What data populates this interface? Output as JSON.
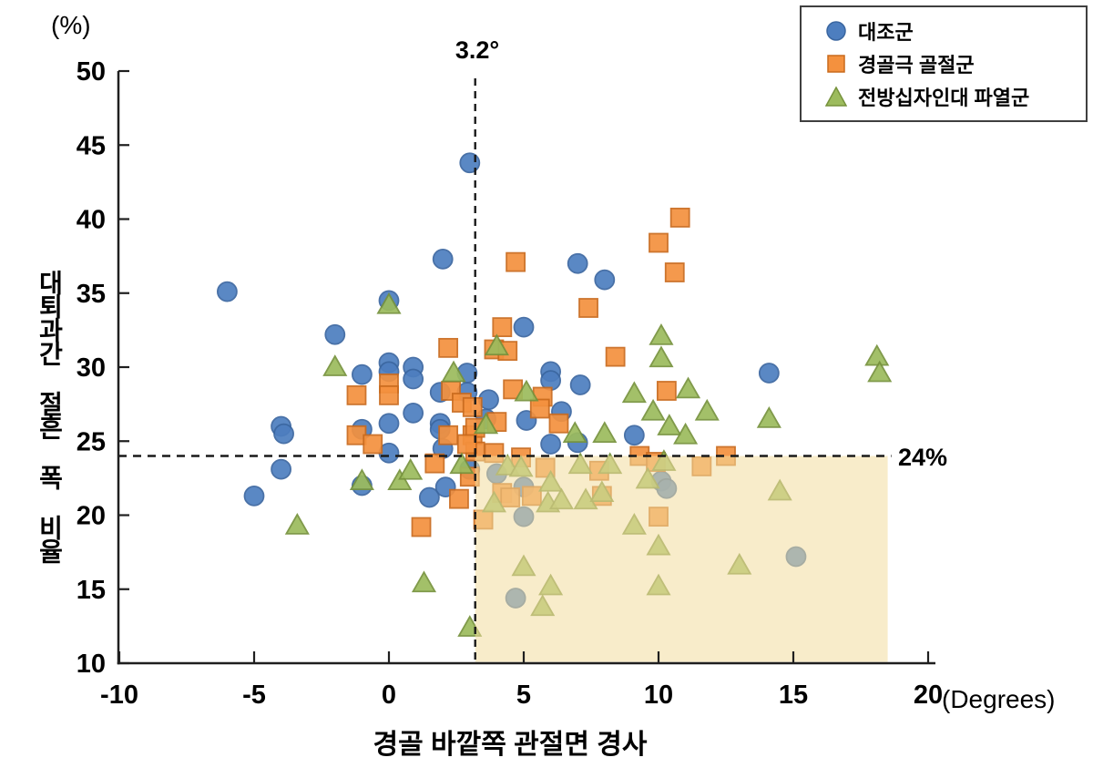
{
  "chart_data": {
    "type": "scatter",
    "xlabel": "경골 바깥쪽 관절면 경사",
    "xunit": "(Degrees)",
    "ylabel": "대퇴과간 절흔 폭 비율",
    "yunit": "(%)",
    "xlim": [
      -10,
      20
    ],
    "ylim": [
      10,
      50
    ],
    "xticks": [
      -10,
      -5,
      0,
      5,
      10,
      15,
      20
    ],
    "yticks": [
      10,
      15,
      20,
      25,
      30,
      35,
      40,
      45,
      50
    ],
    "grid": false,
    "legend_position": "top-right",
    "reference_lines": {
      "vertical": {
        "value": 3.2,
        "label": "3.2°"
      },
      "horizontal": {
        "value": 24,
        "label": "24%"
      }
    },
    "shaded_region": {
      "x": [
        3.2,
        18.5
      ],
      "y": [
        10,
        24
      ],
      "color": "#F3DD9E",
      "opacity": 0.55
    },
    "series": [
      {
        "name": "대조군",
        "marker": "circle",
        "color": "#4D7EBF",
        "edge": "#3A66A0",
        "points": [
          [
            -6.0,
            35.1
          ],
          [
            0.0,
            34.5
          ],
          [
            -2.0,
            32.2
          ],
          [
            3.0,
            43.8
          ],
          [
            2.0,
            37.3
          ],
          [
            7.0,
            37.0
          ],
          [
            8.0,
            35.9
          ],
          [
            5.0,
            32.7
          ],
          [
            -1.0,
            29.5
          ],
          [
            0.0,
            30.3
          ],
          [
            0.0,
            29.7
          ],
          [
            0.9,
            30.0
          ],
          [
            0.9,
            29.2
          ],
          [
            2.9,
            29.6
          ],
          [
            1.9,
            28.3
          ],
          [
            2.9,
            28.3
          ],
          [
            3.7,
            27.8
          ],
          [
            6.0,
            29.7
          ],
          [
            6.0,
            29.1
          ],
          [
            7.1,
            28.8
          ],
          [
            14.1,
            29.6
          ],
          [
            6.4,
            27.0
          ],
          [
            0.0,
            26.2
          ],
          [
            0.9,
            26.9
          ],
          [
            1.9,
            26.2
          ],
          [
            1.9,
            25.8
          ],
          [
            3.6,
            26.5
          ],
          [
            5.1,
            26.4
          ],
          [
            -4.0,
            26.0
          ],
          [
            -3.9,
            25.5
          ],
          [
            -1.0,
            25.8
          ],
          [
            6.0,
            24.8
          ],
          [
            7.0,
            24.9
          ],
          [
            9.1,
            25.4
          ],
          [
            0.0,
            24.2
          ],
          [
            2.0,
            24.5
          ],
          [
            -4.0,
            23.1
          ],
          [
            -5.0,
            21.3
          ],
          [
            -1.0,
            22.0
          ],
          [
            3.0,
            23.1
          ],
          [
            1.5,
            21.2
          ],
          [
            2.1,
            21.9
          ],
          [
            4.0,
            22.8
          ],
          [
            5.0,
            21.9
          ],
          [
            5.0,
            19.9
          ],
          [
            10.1,
            22.3
          ],
          [
            10.3,
            21.8
          ],
          [
            4.7,
            14.4
          ],
          [
            15.1,
            17.2
          ]
        ]
      },
      {
        "name": "경골극 골절군",
        "marker": "square",
        "color": "#F4913E",
        "edge": "#C96A1D",
        "points": [
          [
            10.8,
            40.1
          ],
          [
            10.0,
            38.4
          ],
          [
            4.7,
            37.1
          ],
          [
            10.6,
            36.4
          ],
          [
            7.4,
            34.0
          ],
          [
            4.2,
            32.7
          ],
          [
            2.2,
            31.3
          ],
          [
            3.9,
            31.2
          ],
          [
            4.4,
            31.1
          ],
          [
            8.4,
            30.7
          ],
          [
            -1.2,
            28.1
          ],
          [
            0.0,
            28.9
          ],
          [
            0.0,
            28.1
          ],
          [
            2.3,
            28.4
          ],
          [
            2.7,
            27.6
          ],
          [
            3.1,
            27.3
          ],
          [
            4.6,
            28.5
          ],
          [
            5.7,
            28.0
          ],
          [
            5.6,
            27.2
          ],
          [
            10.3,
            28.4
          ],
          [
            -1.2,
            25.4
          ],
          [
            -0.6,
            24.8
          ],
          [
            2.2,
            25.4
          ],
          [
            3.1,
            25.4
          ],
          [
            3.2,
            24.3
          ],
          [
            3.2,
            25.9
          ],
          [
            4.0,
            26.3
          ],
          [
            6.3,
            26.2
          ],
          [
            3.9,
            24.2
          ],
          [
            2.9,
            24.8
          ],
          [
            1.7,
            23.5
          ],
          [
            4.9,
            23.9
          ],
          [
            9.3,
            24.0
          ],
          [
            12.5,
            24.0
          ],
          [
            11.6,
            23.3
          ],
          [
            3.0,
            22.6
          ],
          [
            5.8,
            23.2
          ],
          [
            7.8,
            23.0
          ],
          [
            9.9,
            23.6
          ],
          [
            2.6,
            21.1
          ],
          [
            4.2,
            21.5
          ],
          [
            4.5,
            21.2
          ],
          [
            5.3,
            21.3
          ],
          [
            7.9,
            21.3
          ],
          [
            1.2,
            19.2
          ],
          [
            3.5,
            19.7
          ],
          [
            10.0,
            19.9
          ]
        ]
      },
      {
        "name": "전방십자인대 파열군",
        "marker": "triangle",
        "color": "#9CBB5D",
        "edge": "#76923C",
        "points": [
          [
            0.0,
            34.2
          ],
          [
            -2.0,
            30.0
          ],
          [
            4.0,
            31.4
          ],
          [
            2.4,
            29.6
          ],
          [
            5.1,
            28.3
          ],
          [
            9.1,
            28.2
          ],
          [
            10.1,
            32.1
          ],
          [
            10.1,
            30.6
          ],
          [
            18.1,
            30.7
          ],
          [
            18.2,
            29.6
          ],
          [
            11.1,
            28.5
          ],
          [
            9.8,
            27.0
          ],
          [
            11.8,
            27.0
          ],
          [
            10.4,
            26.0
          ],
          [
            11.0,
            25.4
          ],
          [
            14.1,
            26.5
          ],
          [
            3.6,
            26.1
          ],
          [
            6.9,
            25.5
          ],
          [
            8.0,
            25.5
          ],
          [
            -1.0,
            22.3
          ],
          [
            -3.4,
            19.3
          ],
          [
            0.4,
            22.3
          ],
          [
            0.8,
            23.0
          ],
          [
            2.7,
            23.4
          ],
          [
            4.4,
            23.3
          ],
          [
            4.9,
            23.2
          ],
          [
            7.1,
            23.4
          ],
          [
            8.2,
            23.4
          ],
          [
            10.2,
            23.6
          ],
          [
            3.9,
            20.8
          ],
          [
            5.9,
            20.8
          ],
          [
            6.4,
            21.0
          ],
          [
            7.3,
            21.0
          ],
          [
            7.9,
            21.5
          ],
          [
            6.0,
            22.2
          ],
          [
            9.6,
            22.4
          ],
          [
            14.5,
            21.6
          ],
          [
            9.1,
            19.3
          ],
          [
            10.0,
            17.9
          ],
          [
            13.0,
            16.6
          ],
          [
            10.0,
            15.2
          ],
          [
            1.3,
            15.4
          ],
          [
            5.0,
            16.5
          ],
          [
            6.0,
            15.2
          ],
          [
            5.7,
            13.8
          ],
          [
            3.0,
            12.4
          ]
        ]
      }
    ]
  }
}
